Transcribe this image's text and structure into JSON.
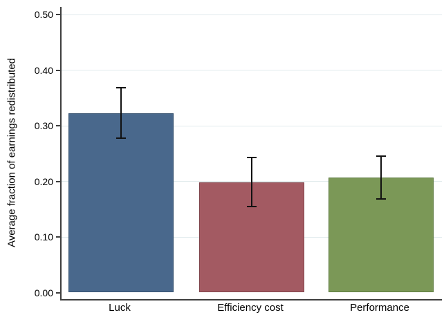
{
  "chart_data": {
    "type": "bar",
    "title": "",
    "xlabel": "",
    "ylabel": "Average fraction of earnings redistributed",
    "categories": [
      "Luck",
      "Efficiency cost",
      "Performance"
    ],
    "values": [
      0.322,
      0.198,
      0.207
    ],
    "error_bars": {
      "low": [
        0.277,
        0.153,
        0.167
      ],
      "high": [
        0.369,
        0.244,
        0.247
      ]
    },
    "ylim": [
      0,
      0.5
    ],
    "ytick_values": [
      0,
      0.1,
      0.2,
      0.3,
      0.4,
      0.5
    ],
    "ytick_labels": [
      "0.00",
      "0.10",
      "0.20",
      "0.30",
      "0.40",
      "0.50"
    ],
    "grid": "horizontal",
    "legend": "none",
    "colors": {
      "bar_fills": [
        "#49688c",
        "#a35a62",
        "#7b9857"
      ],
      "bar_borders": [
        "#34506e",
        "#7e434a",
        "#5c7a3e"
      ],
      "gridline": "#e0eaec",
      "axis": "#3d3d3d",
      "error_bar": "#111111",
      "background": "#ffffff"
    }
  }
}
